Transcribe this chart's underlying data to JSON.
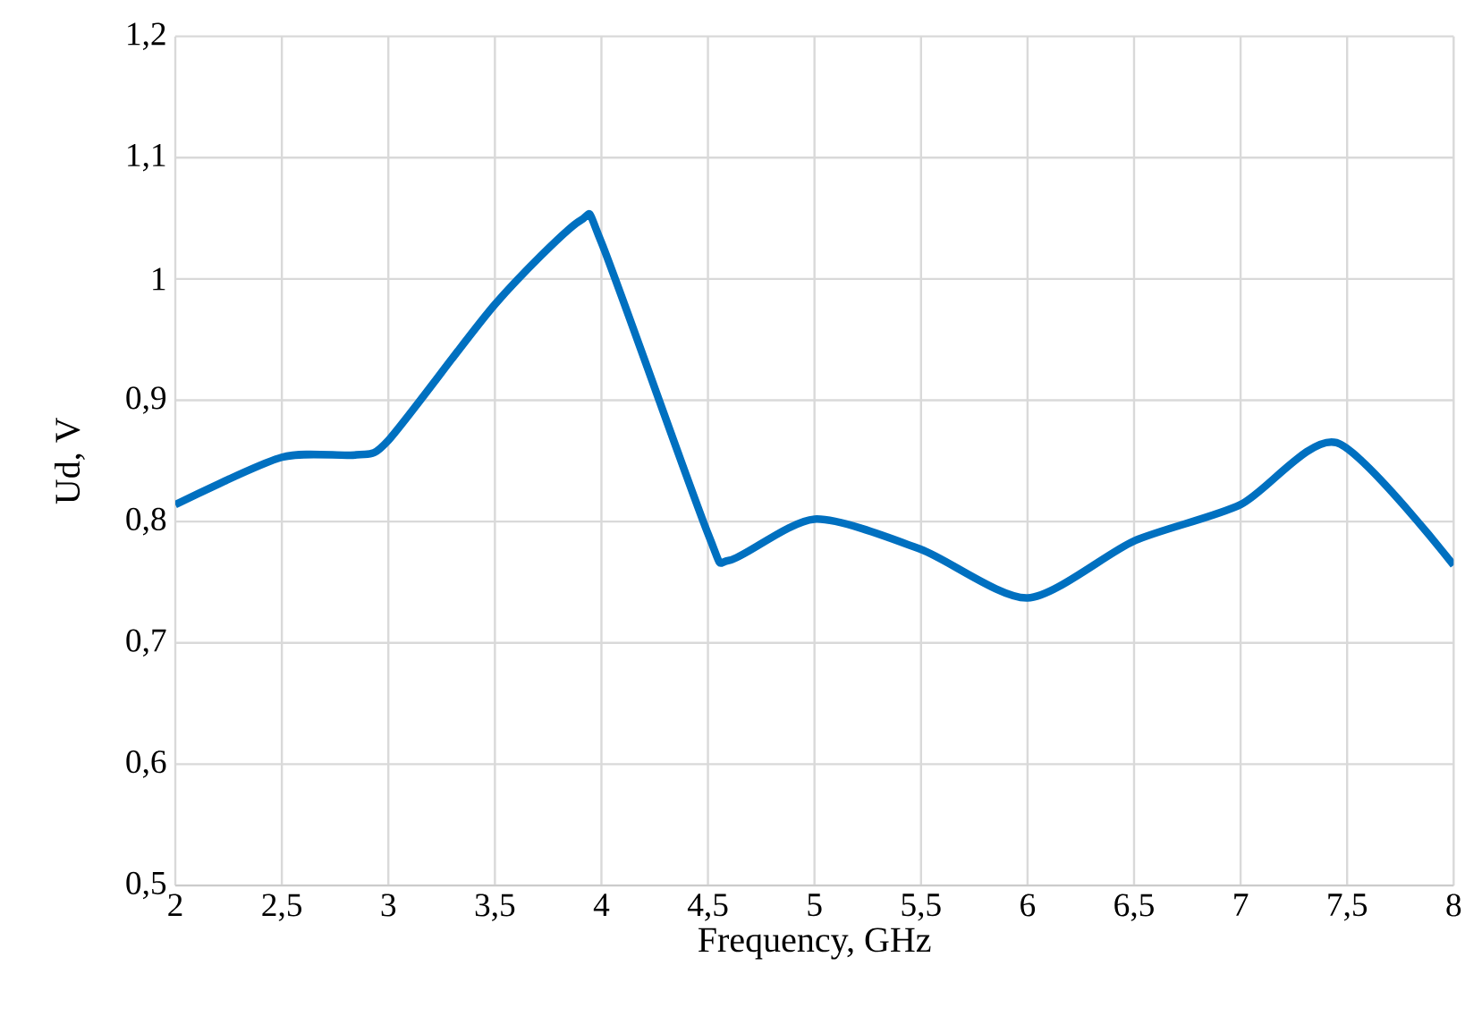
{
  "chart_data": {
    "type": "line",
    "xlabel": "Frequency, GHz",
    "ylabel": "Ud, V",
    "x": [
      2,
      2.5,
      2.85,
      3,
      3.5,
      3.9,
      4,
      4.5,
      4.6,
      5,
      5.5,
      6,
      6.5,
      7,
      7.45,
      8
    ],
    "series": [
      {
        "color": "#0070c0",
        "values": [
          0.814,
          0.853,
          0.855,
          0.867,
          0.979,
          1.048,
          1.03,
          0.79,
          0.768,
          0.802,
          0.777,
          0.737,
          0.784,
          0.814,
          0.865,
          0.764
        ]
      }
    ],
    "xlim": [
      2,
      8
    ],
    "ylim": [
      0.5,
      1.2
    ],
    "xticks": [
      2,
      {
        "value": 2.5,
        "label": "2,5"
      },
      3,
      {
        "value": 3.5,
        "label": "3,5"
      },
      4,
      {
        "value": 4.5,
        "label": "4,5"
      },
      5,
      {
        "value": 5.5,
        "label": "5,5"
      },
      6,
      {
        "value": 6.5,
        "label": "6,5"
      },
      7,
      {
        "value": 7.5,
        "label": "7,5"
      },
      8
    ],
    "yticks": [
      {
        "value": 0.5,
        "label": "0,5"
      },
      {
        "value": 0.6,
        "label": "0,6"
      },
      {
        "value": 0.7,
        "label": "0,7"
      },
      {
        "value": 0.8,
        "label": "0,8"
      },
      {
        "value": 0.9,
        "label": "0,9"
      },
      1,
      {
        "value": 1.1,
        "label": "1,1"
      },
      {
        "value": 1.2,
        "label": "1,2"
      }
    ],
    "grid": true,
    "marker": "none",
    "line_style": "solid"
  }
}
